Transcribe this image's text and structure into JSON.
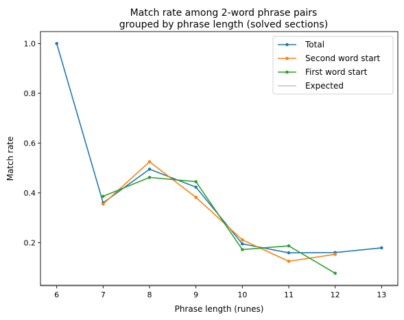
{
  "chart_data": {
    "type": "line",
    "title": [
      "Match rate among 2-word phrase pairs",
      "grouped by phrase length (solved sections)"
    ],
    "xlabel": "Phrase length (runes)",
    "ylabel": "Match rate",
    "xlim": [
      5.65,
      13.35
    ],
    "ylim": [
      0.027,
      1.048
    ],
    "xticks": [
      6,
      7,
      8,
      9,
      10,
      11,
      12,
      13
    ],
    "yticks": [
      0.2,
      0.4,
      0.6,
      0.8,
      1.0
    ],
    "ytick_labels": [
      "0.2",
      "0.4",
      "0.6",
      "0.8",
      "1.0"
    ],
    "grid": false,
    "legend_position": "top-right",
    "series": [
      {
        "name": "Total",
        "color": "#1f77b4",
        "marker": true,
        "points": [
          [
            6,
            1.0
          ],
          [
            7,
            0.36
          ],
          [
            8,
            0.495
          ],
          [
            9,
            0.423
          ],
          [
            10,
            0.195
          ],
          [
            11,
            0.159
          ],
          [
            12,
            0.16
          ],
          [
            13,
            0.179
          ]
        ]
      },
      {
        "name": "Second word start",
        "color": "#ff7f0e",
        "marker": true,
        "points": [
          [
            7,
            0.355
          ],
          [
            8,
            0.525
          ],
          [
            9,
            0.382
          ],
          [
            10,
            0.211
          ],
          [
            11,
            0.125
          ],
          [
            12,
            0.153
          ]
        ]
      },
      {
        "name": "First word start",
        "color": "#2ca02c",
        "marker": true,
        "points": [
          [
            7,
            0.386
          ],
          [
            8,
            0.462
          ],
          [
            9,
            0.445
          ],
          [
            10,
            0.172
          ],
          [
            11,
            0.187
          ],
          [
            12,
            0.077
          ]
        ]
      },
      {
        "name": "Expected",
        "color": "#b5b5b5",
        "marker": false,
        "hline": 0.03
      }
    ]
  }
}
